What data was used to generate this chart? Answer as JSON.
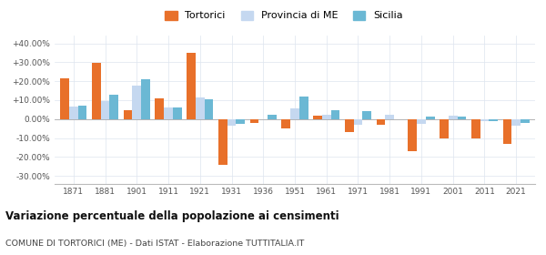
{
  "years": [
    1871,
    1881,
    1901,
    1911,
    1921,
    1931,
    1936,
    1951,
    1961,
    1971,
    1981,
    1991,
    2001,
    2011,
    2021
  ],
  "tortorici": [
    21.5,
    29.5,
    4.5,
    11.0,
    35.0,
    -24.0,
    -2.0,
    -5.0,
    2.0,
    -7.0,
    -3.0,
    -17.0,
    -10.0,
    -10.0,
    -13.0
  ],
  "provincia_me": [
    6.5,
    9.5,
    17.5,
    6.0,
    11.5,
    -3.5,
    0.0,
    5.5,
    2.5,
    -3.0,
    2.5,
    -2.5,
    2.0,
    -1.0,
    -3.5
  ],
  "sicilia": [
    7.0,
    13.0,
    21.0,
    6.0,
    10.5,
    -2.5,
    2.5,
    12.0,
    4.5,
    4.0,
    0.0,
    1.5,
    1.5,
    -1.0,
    -2.0
  ],
  "color_tortorici": "#e8702a",
  "color_provincia": "#c5d8f0",
  "color_sicilia": "#6bb8d4",
  "title": "Variazione percentuale della popolazione ai censimenti",
  "subtitle": "COMUNE DI TORTORICI (ME) - Dati ISTAT - Elaborazione TUTTITALIA.IT",
  "legend_labels": [
    "Tortorici",
    "Provincia di ME",
    "Sicilia"
  ],
  "ylim": [
    -34,
    44
  ],
  "yticks": [
    -30,
    -20,
    -10,
    0,
    10,
    20,
    30,
    40
  ],
  "ytick_labels": [
    "-30.00%",
    "-20.00%",
    "-10.00%",
    "0.00%",
    "+10.00%",
    "+20.00%",
    "+30.00%",
    "+40.00%"
  ],
  "bar_width": 0.28,
  "background_color": "#ffffff",
  "grid_color": "#dde4ef"
}
